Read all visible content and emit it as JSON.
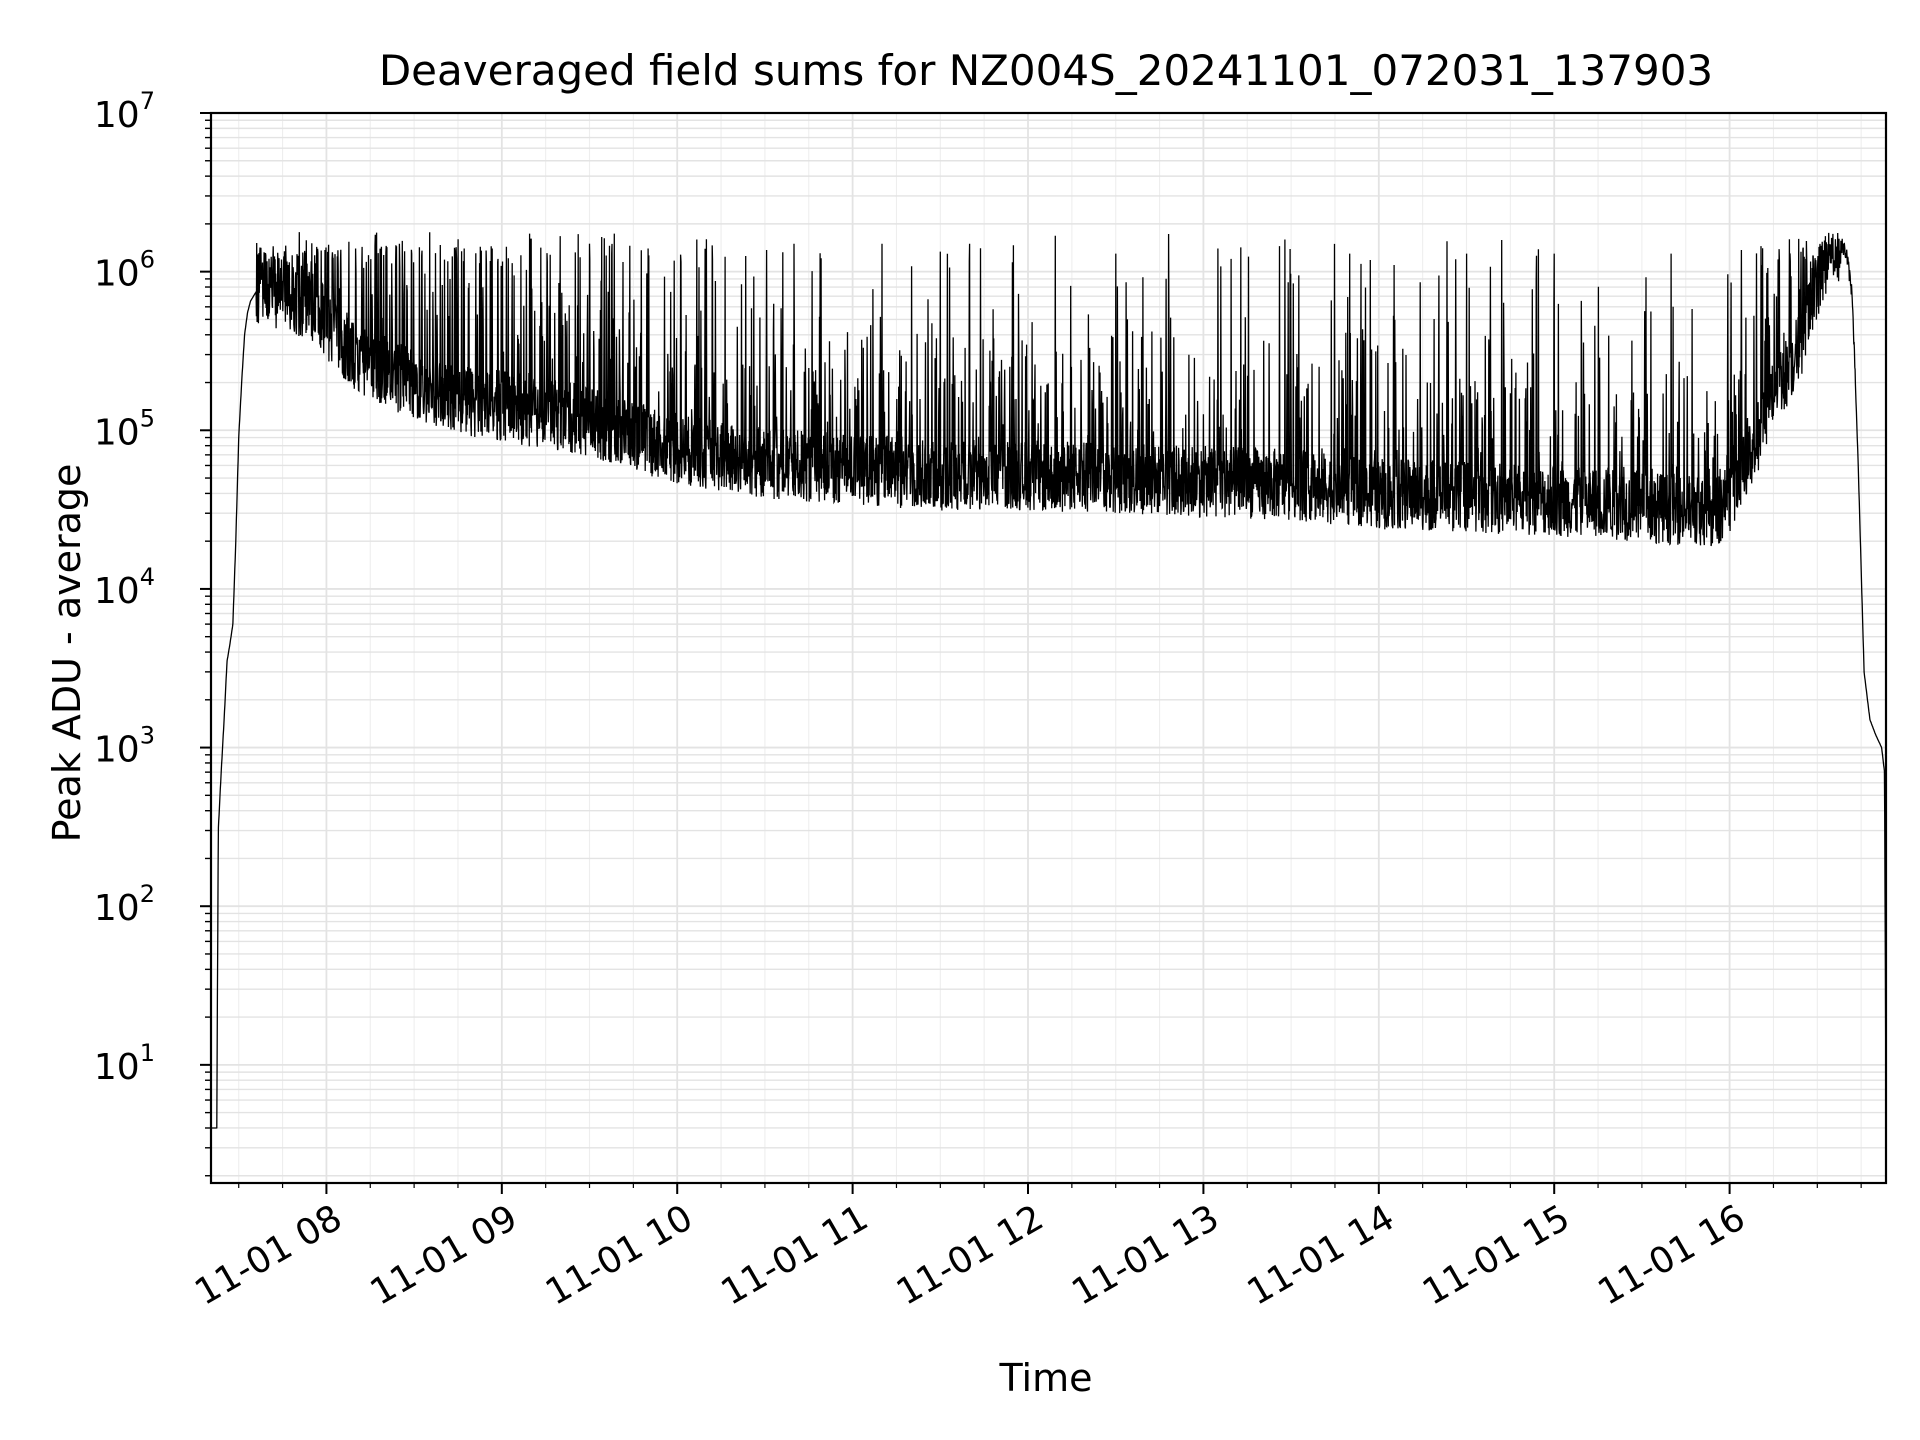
{
  "chart_data": {
    "type": "line",
    "title": "Deaveraged field sums for NZ004S_20241101_072031_137903",
    "xlabel": "Time",
    "ylabel": "Peak ADU - average",
    "yscale": "log",
    "ylim": [
      1.8,
      10000000
    ],
    "xlim": [
      "2024-11-01 07:20:31",
      "2024-11-01 16:53:30"
    ],
    "grid": "major and minor",
    "line_color": "#000000",
    "grid_color": "#e3e3e3",
    "x_ticks": [
      {
        "t": "2024-11-01 08:00",
        "label": "11-01 08"
      },
      {
        "t": "2024-11-01 09:00",
        "label": "11-01 09"
      },
      {
        "t": "2024-11-01 10:00",
        "label": "11-01 10"
      },
      {
        "t": "2024-11-01 11:00",
        "label": "11-01 11"
      },
      {
        "t": "2024-11-01 12:00",
        "label": "11-01 12"
      },
      {
        "t": "2024-11-01 13:00",
        "label": "11-01 13"
      },
      {
        "t": "2024-11-01 14:00",
        "label": "11-01 14"
      },
      {
        "t": "2024-11-01 15:00",
        "label": "11-01 15"
      },
      {
        "t": "2024-11-01 16:00",
        "label": "11-01 16"
      }
    ],
    "y_ticks": [
      {
        "value": 10,
        "base": "10",
        "exp": "1"
      },
      {
        "value": 100,
        "base": "10",
        "exp": "2"
      },
      {
        "value": 1000,
        "base": "10",
        "exp": "3"
      },
      {
        "value": 10000,
        "base": "10",
        "exp": "4"
      },
      {
        "value": 100000,
        "base": "10",
        "exp": "5"
      },
      {
        "value": 1000000,
        "base": "10",
        "exp": "6"
      },
      {
        "value": 10000000,
        "base": "10",
        "exp": "7"
      }
    ],
    "series": [
      {
        "x": [
          "2024-11-01 07:20:31",
          "2024-11-01 07:21:00",
          "2024-11-01 07:22:00",
          "2024-11-01 07:22:30",
          "2024-11-01 07:23:00",
          "2024-11-01 07:24:00",
          "2024-11-01 07:25:00",
          "2024-11-01 07:26:00",
          "2024-11-01 07:27:00",
          "2024-11-01 07:28:00",
          "2024-11-01 07:29:00",
          "2024-11-01 07:30:00",
          "2024-11-01 07:31:00",
          "2024-11-01 07:32:00",
          "2024-11-01 07:33:00",
          "2024-11-01 07:34:00",
          "2024-11-01 07:36:00",
          "2024-11-01 07:38:00",
          "2024-11-01 07:41:00",
          "2024-11-01 07:45:00",
          "2024-11-01 07:50:00",
          "2024-11-01 07:55:00",
          "2024-11-01 08:00:00",
          "2024-11-01 08:10:00",
          "2024-11-01 08:20:00",
          "2024-11-01 08:30:00",
          "2024-11-01 08:40:00",
          "2024-11-01 08:50:00",
          "2024-11-01 09:00:00",
          "2024-11-01 09:30:00",
          "2024-11-01 10:00:00",
          "2024-11-01 10:30:00",
          "2024-11-01 11:00:00",
          "2024-11-01 11:30:00",
          "2024-11-01 12:00:00",
          "2024-11-01 12:30:00",
          "2024-11-01 13:00:00",
          "2024-11-01 13:30:00",
          "2024-11-01 14:00:00",
          "2024-11-01 14:30:00",
          "2024-11-01 15:00:00",
          "2024-11-01 15:30:00",
          "2024-11-01 15:55:00",
          "2024-11-01 16:00:00",
          "2024-11-01 16:05:00",
          "2024-11-01 16:10:00",
          "2024-11-01 16:15:00",
          "2024-11-01 16:20:00",
          "2024-11-01 16:25:00",
          "2024-11-01 16:30:00",
          "2024-11-01 16:35:00",
          "2024-11-01 16:38:00",
          "2024-11-01 16:40:00",
          "2024-11-01 16:42:00",
          "2024-11-01 16:44:00",
          "2024-11-01 16:46:00",
          "2024-11-01 16:48:00",
          "2024-11-01 16:50:00",
          "2024-11-01 16:52:00",
          "2024-11-01 16:53:00",
          "2024-11-01 16:53:30"
        ],
        "y": [
          4,
          4,
          4,
          4,
          300,
          700,
          1500,
          3500,
          4500,
          6000,
          20000,
          90000,
          200000,
          400000,
          550000,
          650000,
          750000,
          850000,
          800000,
          750000,
          700000,
          650000,
          500000,
          300000,
          250000,
          200000,
          180000,
          160000,
          150000,
          120000,
          80000,
          65000,
          60000,
          55000,
          55000,
          52000,
          50000,
          48000,
          42000,
          40000,
          38000,
          35000,
          32000,
          40000,
          60000,
          100000,
          200000,
          250000,
          400000,
          900000,
          1600000,
          1500000,
          1300000,
          700000,
          60000,
          3000,
          1500,
          1200,
          1000,
          700,
          4
        ],
        "spikes": [
          {
            "t": "2024-11-01 07:50:00",
            "y": 1800000
          },
          {
            "t": "2024-11-01 07:56:00",
            "y": 3300000
          },
          {
            "t": "2024-11-01 08:10:00",
            "y": 1400000
          },
          {
            "t": "2024-11-01 08:25:00",
            "y": 1500000
          },
          {
            "t": "2024-11-01 08:45:00",
            "y": 1600000
          },
          {
            "t": "2024-11-01 09:10:00",
            "y": 1600000
          },
          {
            "t": "2024-11-01 09:30:00",
            "y": 1500000
          },
          {
            "t": "2024-11-01 09:50:00",
            "y": 1400000
          },
          {
            "t": "2024-11-01 10:10:00",
            "y": 1600000
          },
          {
            "t": "2024-11-01 10:40:00",
            "y": 1500000
          },
          {
            "t": "2024-11-01 11:10:00",
            "y": 1500000
          },
          {
            "t": "2024-11-01 11:40:00",
            "y": 1500000
          },
          {
            "t": "2024-11-01 11:55:00",
            "y": 2200000
          },
          {
            "t": "2024-11-01 12:30:00",
            "y": 1300000
          },
          {
            "t": "2024-11-01 13:05:00",
            "y": 1400000
          },
          {
            "t": "2024-11-01 13:50:00",
            "y": 1300000
          },
          {
            "t": "2024-11-01 14:30:00",
            "y": 1300000
          },
          {
            "t": "2024-11-01 15:00:00",
            "y": 1300000
          },
          {
            "t": "2024-11-01 15:40:00",
            "y": 1300000
          },
          {
            "t": "2024-11-01 16:33:00",
            "y": 5200000
          }
        ]
      }
    ]
  }
}
